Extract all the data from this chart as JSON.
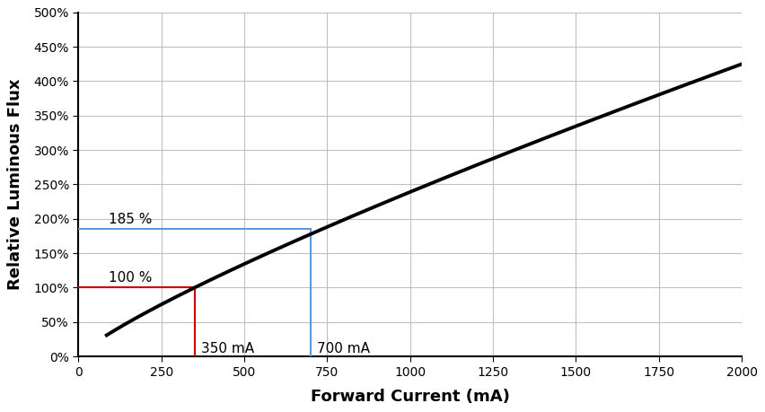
{
  "title": "",
  "xlabel": "Forward Current (mA)",
  "ylabel": "Relative Luminous Flux",
  "xlim": [
    0,
    2000
  ],
  "ylim": [
    0,
    5.0
  ],
  "xticks": [
    0,
    250,
    500,
    750,
    1000,
    1250,
    1500,
    1750,
    2000
  ],
  "yticks": [
    0.0,
    0.5,
    1.0,
    1.5,
    2.0,
    2.5,
    3.0,
    3.5,
    4.0,
    4.5,
    5.0
  ],
  "curve_color": "#000000",
  "red_color": "#cc0000",
  "blue_color": "#5b9bd5",
  "annotation_100": "100 %",
  "annotation_185": "185 %",
  "annotation_350": "350 mA",
  "annotation_700": "700 mA",
  "ref_x1": 350,
  "ref_y1": 1.0,
  "ref_x2": 700,
  "ref_y2": 1.85,
  "x_start": 85,
  "y_start": 0.3,
  "x_end": 2000,
  "y_end": 4.25,
  "background_color": "#ffffff",
  "grid_color": "#c0c0c0"
}
